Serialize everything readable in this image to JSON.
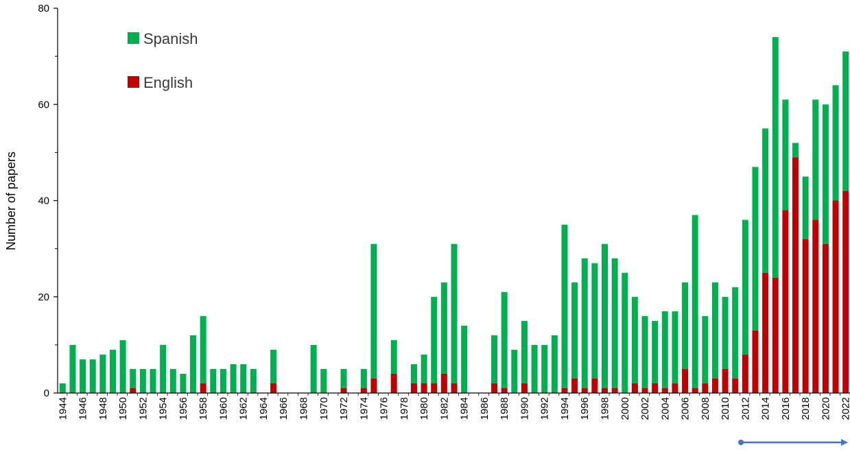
{
  "chart_data": {
    "type": "bar",
    "stacked": true,
    "ylabel": "Number of papers",
    "xlabel": "",
    "ylim": [
      0,
      80
    ],
    "yticks": [
      0,
      20,
      40,
      60,
      80
    ],
    "grid": false,
    "legend_position": "top-left",
    "x": [
      1944,
      1945,
      1946,
      1947,
      1948,
      1949,
      1950,
      1951,
      1952,
      1953,
      1954,
      1955,
      1956,
      1957,
      1958,
      1959,
      1960,
      1961,
      1962,
      1963,
      1964,
      1965,
      1966,
      1967,
      1968,
      1969,
      1970,
      1971,
      1972,
      1973,
      1974,
      1975,
      1976,
      1977,
      1978,
      1979,
      1980,
      1981,
      1982,
      1983,
      1984,
      1985,
      1986,
      1987,
      1988,
      1989,
      1990,
      1991,
      1992,
      1993,
      1994,
      1995,
      1996,
      1997,
      1998,
      1999,
      2000,
      2001,
      2002,
      2003,
      2004,
      2005,
      2006,
      2007,
      2008,
      2009,
      2010,
      2011,
      2012,
      2013,
      2014,
      2015,
      2016,
      2017,
      2018,
      2019,
      2020,
      2021,
      2022
    ],
    "xtick_labels": [
      "1944",
      "1946",
      "1948",
      "1950",
      "1952",
      "1954",
      "1956",
      "1958",
      "1960",
      "1962",
      "1964",
      "1966",
      "1968",
      "1970",
      "1972",
      "1974",
      "1976",
      "1978",
      "1980",
      "1982",
      "1984",
      "1986",
      "1988",
      "1990",
      "1992",
      "1994",
      "1996",
      "1998",
      "2000",
      "2002",
      "2004",
      "2006",
      "2008",
      "2010",
      "2012",
      "2014",
      "2016",
      "2018",
      "2020",
      "2022"
    ],
    "series": [
      {
        "name": "English",
        "color": "#c00000",
        "values": [
          0,
          0,
          0,
          0,
          0,
          0,
          0,
          1,
          0,
          0,
          0,
          0,
          0,
          0,
          2,
          0,
          0,
          0,
          0,
          0,
          0,
          2,
          0,
          0,
          0,
          0,
          0,
          0,
          1,
          0,
          1,
          3,
          0,
          4,
          0,
          2,
          2,
          2,
          4,
          2,
          0,
          0,
          0,
          2,
          1,
          0,
          2,
          0,
          0,
          0,
          1,
          3,
          1,
          3,
          1,
          1,
          0,
          2,
          1,
          2,
          1,
          2,
          5,
          1,
          2,
          3,
          5,
          3,
          8,
          13,
          25,
          24,
          38,
          49,
          32,
          36,
          31,
          40,
          42
        ]
      },
      {
        "name": "Spanish",
        "color": "#00b050",
        "values": [
          2,
          10,
          7,
          7,
          8,
          9,
          11,
          4,
          5,
          5,
          10,
          5,
          4,
          12,
          14,
          5,
          5,
          6,
          6,
          5,
          0,
          7,
          0,
          0,
          0,
          10,
          5,
          0,
          4,
          0,
          4,
          28,
          0,
          7,
          0,
          4,
          6,
          18,
          19,
          29,
          14,
          0,
          0,
          10,
          20,
          9,
          13,
          10,
          10,
          12,
          34,
          20,
          27,
          24,
          30,
          27,
          25,
          18,
          15,
          13,
          16,
          15,
          18,
          36,
          14,
          20,
          15,
          19,
          28,
          34,
          30,
          50,
          23,
          3,
          13,
          25,
          29,
          24,
          29
        ]
      }
    ],
    "annotation": {
      "type": "arrow",
      "from_year": 2011.5,
      "to_year": 2023,
      "color": "#4472c4"
    }
  }
}
